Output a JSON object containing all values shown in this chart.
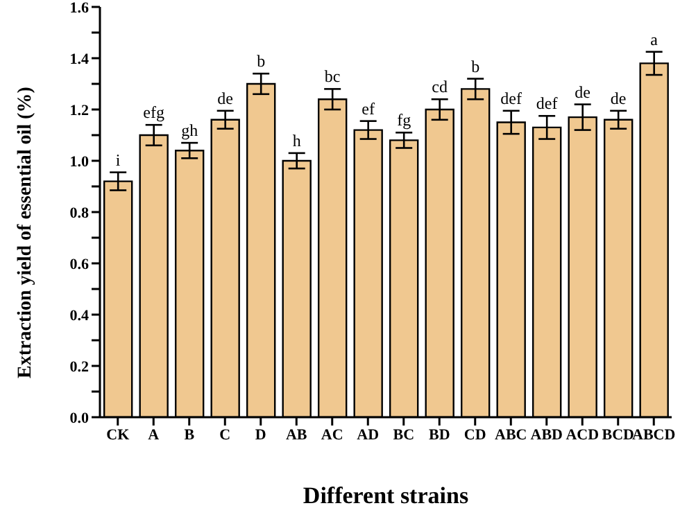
{
  "chart_data": {
    "type": "bar",
    "xlabel": "Different strains",
    "ylabel": "Extraction yield of essential oil (%)",
    "categories": [
      "CK",
      "A",
      "B",
      "C",
      "D",
      "AB",
      "AC",
      "AD",
      "BC",
      "BD",
      "CD",
      "ABC",
      "ABD",
      "ACD",
      "BCD",
      "ABCD"
    ],
    "values": [
      0.92,
      1.1,
      1.04,
      1.16,
      1.3,
      1.0,
      1.24,
      1.12,
      1.08,
      1.2,
      1.28,
      1.15,
      1.13,
      1.17,
      1.16,
      1.38
    ],
    "errors": [
      0.035,
      0.04,
      0.03,
      0.035,
      0.04,
      0.03,
      0.04,
      0.035,
      0.03,
      0.04,
      0.04,
      0.045,
      0.045,
      0.05,
      0.035,
      0.045
    ],
    "value_labels": [
      "i",
      "efg",
      "gh",
      "de",
      "b",
      "h",
      "bc",
      "ef",
      "fg",
      "cd",
      "b",
      "def",
      "def",
      "de",
      "de",
      "a"
    ],
    "color": "#f0c890",
    "ylim": [
      0,
      1.6
    ],
    "yticks": [
      {
        "value": 0,
        "label": "0.0"
      },
      {
        "value": 0.1,
        "label": null
      },
      0.2,
      {
        "value": 0.3,
        "label": null
      },
      0.4,
      {
        "value": 0.5,
        "label": null
      },
      0.6,
      {
        "value": 0.7,
        "label": null
      },
      0.8,
      {
        "value": 0.9,
        "label": null
      },
      {
        "value": 1.0,
        "label": "1.0"
      },
      {
        "value": 1.1,
        "label": null
      },
      1.2,
      {
        "value": 1.3,
        "label": null
      },
      1.4,
      {
        "value": 1.5,
        "label": null
      },
      1.6
    ]
  }
}
